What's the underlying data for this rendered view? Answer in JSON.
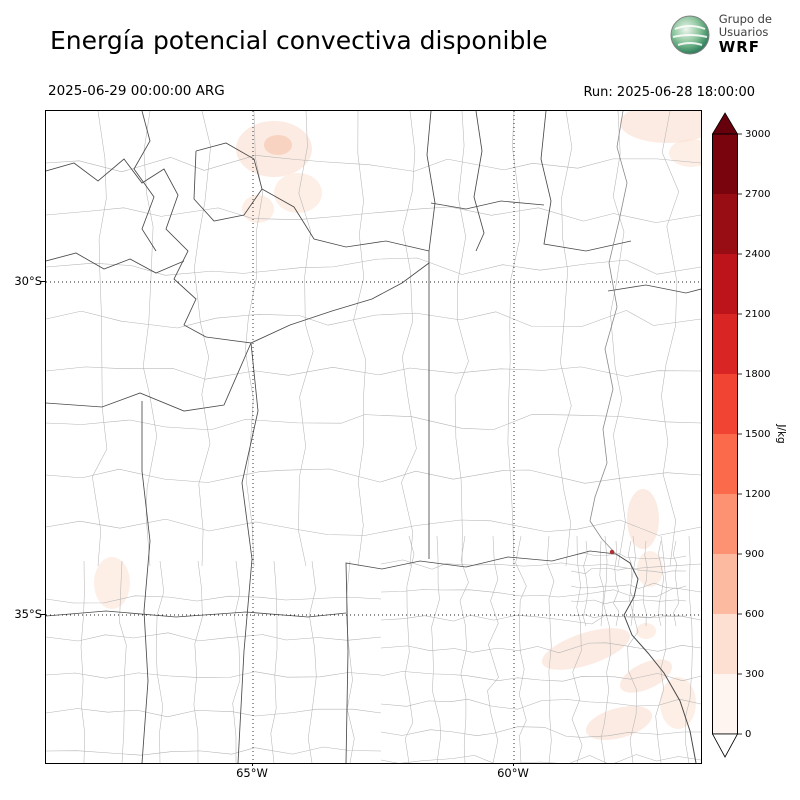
{
  "header": {
    "title": "Energía potencial convectiva disponible",
    "valid_time": "2025-06-29 00:00:00 ARG",
    "run_label": "Run: 2025-06-28 18:00:00",
    "logo": {
      "line1": "Grupo de",
      "line2": "Usuarios",
      "line3": "WRF"
    }
  },
  "map": {
    "y_axis_labels": [
      "30°S",
      "35°S"
    ],
    "x_axis_labels": [
      "65°W",
      "60°W"
    ]
  },
  "chart_data": {
    "type": "heatmap",
    "title": "Energía potencial convectiva disponible",
    "variable": "CAPE (convective available potential energy)",
    "units": "J/kg",
    "valid_time": "2025-06-29 00:00:00 ARG",
    "run_time": "2025-06-28 18:00:00",
    "x_ticks": [
      "65°W",
      "60°W"
    ],
    "y_ticks": [
      "30°S",
      "35°S"
    ],
    "colorbar": {
      "label": "J/kg",
      "ticks": [
        "0",
        "300",
        "600",
        "900",
        "1200",
        "1500",
        "1800",
        "2100",
        "2400",
        "2700",
        "3000"
      ],
      "levels": [
        0,
        300,
        600,
        900,
        1200,
        1500,
        1800,
        2100,
        2400,
        2700,
        3000
      ],
      "colors": [
        "#fff5f0",
        "#fee0d2",
        "#fcbba1",
        "#fc9272",
        "#fb6a4a",
        "#f14432",
        "#d92523",
        "#bc141a",
        "#980c13",
        "#7a040e"
      ],
      "over_color": "#67000d",
      "under_color": "#ffffff"
    },
    "field_summary": "CAPE mostly near 0 J/kg over the domain; weak values (≤300 J/kg) in patches over the north-center, the northeast corner, and the southeast near the Buenos Aires coast"
  },
  "colors": {
    "background": "#ffffff",
    "map_border": "#000000",
    "department_line": "#b5b5b5",
    "province_line": "#4a4a4a",
    "river_line": "#8a8a8a",
    "grid_line": "#222222",
    "cape_light": "#fbe3d6",
    "cape_mid": "#f6cdb9"
  }
}
